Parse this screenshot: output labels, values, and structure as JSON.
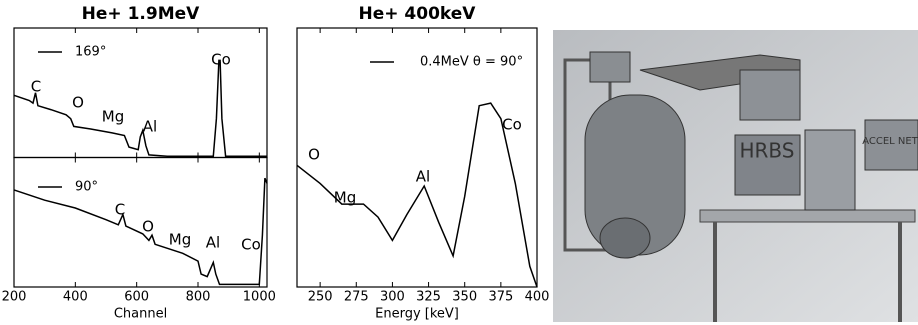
{
  "chart_data": [
    {
      "type": "line",
      "layout": "stacked",
      "title": "He+ 1.9MeV",
      "xlabel": "Channel",
      "xlim": [
        200,
        1025
      ],
      "xticks": [
        200,
        400,
        600,
        800,
        1000
      ],
      "ylim": [
        0,
        1
      ],
      "series": [
        {
          "name": "169°",
          "color": "#000000",
          "x": [
            200,
            250,
            262,
            270,
            278,
            320,
            370,
            385,
            395,
            450,
            520,
            560,
            575,
            590,
            605,
            612,
            620,
            630,
            640,
            700,
            850,
            860,
            868,
            872,
            878,
            890,
            1025
          ],
          "values": [
            0.48,
            0.44,
            0.42,
            0.5,
            0.4,
            0.37,
            0.33,
            0.3,
            0.24,
            0.22,
            0.19,
            0.17,
            0.08,
            0.07,
            0.06,
            0.16,
            0.21,
            0.09,
            0.02,
            0.01,
            0.01,
            0.3,
            0.75,
            0.75,
            0.3,
            0.01,
            0.01
          ],
          "annotations": [
            "C",
            "O",
            "Mg",
            "Al",
            "Co"
          ]
        },
        {
          "name": "90°",
          "color": "#000000",
          "x": [
            200,
            300,
            400,
            500,
            540,
            555,
            565,
            620,
            640,
            650,
            660,
            750,
            800,
            810,
            830,
            850,
            858,
            870,
            1000,
            1010,
            1018,
            1025
          ],
          "values": [
            0.75,
            0.67,
            0.61,
            0.52,
            0.48,
            0.56,
            0.47,
            0.41,
            0.36,
            0.4,
            0.33,
            0.26,
            0.2,
            0.1,
            0.08,
            0.19,
            0.1,
            0.02,
            0.02,
            0.4,
            0.84,
            0.8
          ],
          "annotations": [
            "C",
            "O",
            "Mg",
            "Al",
            "Co"
          ]
        }
      ]
    },
    {
      "type": "line",
      "title": "He+ 400keV",
      "xlabel": "Energy [keV]",
      "xlim": [
        234,
        400
      ],
      "xticks": [
        250,
        275,
        300,
        325,
        350,
        375,
        400
      ],
      "ylim": [
        0,
        1
      ],
      "series": [
        {
          "name": "0.4MeV θ = 90°",
          "color": "#000000",
          "x": [
            234,
            250,
            265,
            280,
            290,
            300,
            310,
            322,
            332,
            342,
            350,
            360,
            368,
            375,
            385,
            395,
            400
          ],
          "values": [
            0.47,
            0.4,
            0.32,
            0.32,
            0.27,
            0.18,
            0.28,
            0.39,
            0.25,
            0.12,
            0.35,
            0.7,
            0.71,
            0.65,
            0.4,
            0.08,
            0.0
          ],
          "annotations": [
            "O",
            "Mg",
            "Al",
            "Co"
          ]
        }
      ]
    }
  ],
  "image": {
    "labels": [
      "HRBS",
      "ACCEL NET"
    ]
  }
}
